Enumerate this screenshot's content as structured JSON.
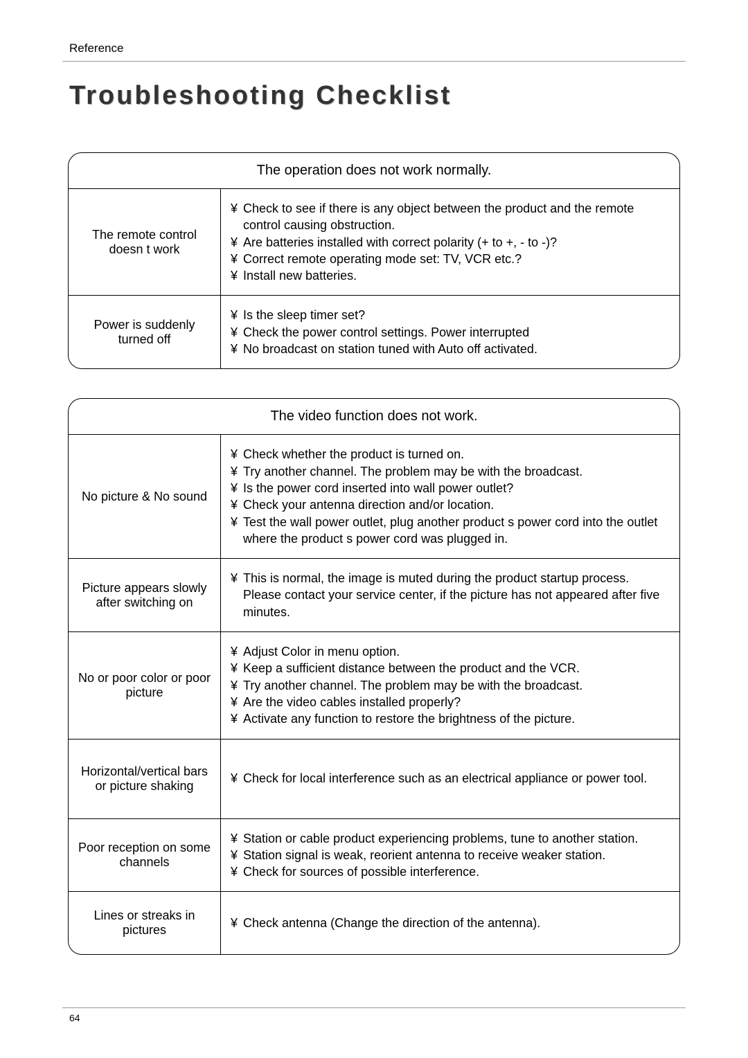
{
  "section_header": "Reference",
  "title": "Troubleshooting Checklist",
  "page_number": "64",
  "table1": {
    "caption": "The operation does not work normally.",
    "rows": [
      {
        "label": "The remote control doesn t work",
        "items": [
          "Check to see if there is any object between the product and the remote control causing obstruction.",
          "Are batteries installed with correct polarity (+ to +, - to -)?",
          "Correct remote operating mode set: TV, VCR etc.?",
          "Install new batteries."
        ]
      },
      {
        "label": "Power is suddenly turned off",
        "items": [
          "Is the sleep timer set?",
          "Check the power control settings. Power interrupted",
          "No broadcast on station tuned with Auto off activated."
        ]
      }
    ]
  },
  "table2": {
    "caption": "The video function does not work.",
    "rows": [
      {
        "label": "No picture & No sound",
        "items": [
          "Check whether the product is turned on.",
          "Try another channel. The problem may be with the broadcast.",
          "Is the power cord inserted into wall power outlet?",
          "Check your antenna direction and/or location.",
          "Test the wall power outlet, plug another product s power cord into the outlet where the product s power cord was plugged in."
        ]
      },
      {
        "label": "Picture appears slowly after switching on",
        "items": [
          "This is normal, the image is muted during the product startup process. Please contact your service center, if the picture has not appeared after five minutes."
        ]
      },
      {
        "label": "No or poor color or poor picture",
        "items": [
          "Adjust Color in menu option.",
          "Keep a sufficient distance between the product and the VCR.",
          "Try another channel. The problem may be with the broadcast.",
          "Are the video cables installed properly?",
          "Activate any function to restore the brightness of the picture."
        ]
      },
      {
        "label": "Horizontal/vertical bars or picture shaking",
        "items": [
          "Check for local interference such as an electrical appliance or power tool."
        ],
        "pad": "36px"
      },
      {
        "label": "Poor reception on some channels",
        "items": [
          "Station or cable product experiencing problems, tune to another station.",
          "Station signal is weak, reorient antenna to receive weaker station.",
          "Check for sources of possible interference."
        ]
      },
      {
        "label": "Lines or streaks in pictures",
        "items": [
          "Check antenna (Change the direction of the antenna)."
        ],
        "pad": "24px"
      }
    ]
  }
}
